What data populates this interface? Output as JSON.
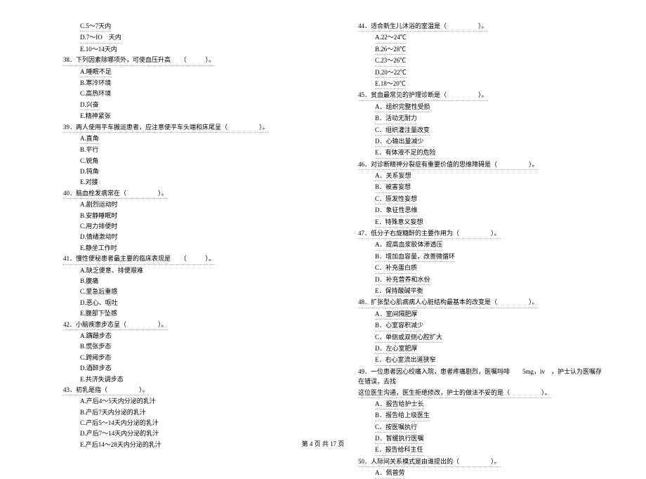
{
  "left": {
    "q37_opts_tail": [
      "C.5～7天内",
      "D.7～IO　天内",
      "E.10～14天内"
    ],
    "q38": {
      "stem": "38．下列因素除哪项外，可使血压升高　　（　　　）。",
      "opts": [
        "A.睡眠不足",
        "B.寒冷环境",
        "C.高热环境",
        "D.兴奋",
        "E.精神紧张"
      ]
    },
    "q39": {
      "stem": "39．两人使用平车搬运患者，应注意使平车头端和床尾呈（　　　　　）。",
      "opts": [
        "A.直角",
        "B.平行",
        "C.锐角",
        "D.钝角",
        "E.对接"
      ]
    },
    "q40": {
      "stem": "40．脑血栓发病常在（　　　　　）。",
      "opts": [
        "A.剧烈运动时",
        "B.安静睡眠时",
        "C.用力排便时",
        "D.情绪激动时",
        "E.静坐工作时"
      ]
    },
    "q41": {
      "stem": "41．慢性便秘患者最主要的临床表现是　　（　　　）。",
      "opts": [
        "A.缺乏便意、排便艰难",
        "B.腹痛",
        "C.里急后重感",
        "D.恶心、呕吐",
        "E.腹部下坠感"
      ]
    },
    "q42": {
      "stem": "42．小脑疾患步态呈（　　　　　）。",
      "opts": [
        "A.蹒跚步态",
        "B.慌张步态",
        "C.跨阈步态",
        "D.酒醉步态",
        "E.共济失调步态"
      ]
    },
    "q43": {
      "stem": "43．初乳是指（　　　　　）。",
      "opts": [
        "A.产后4～5天内分泌的乳汁",
        "B.产后7天内分泌的乳汁",
        "C.产后5～14天内分泌的乳汁",
        "D.产后7～14天内分泌的乳汁",
        "E.产后14～28天内分泌的乳汁"
      ]
    }
  },
  "right": {
    "q44": {
      "stem": "44．适合新生儿沐浴的室温是（　　　　　）。",
      "opts": [
        "A.22～24℃",
        "B.26～28℃",
        "C.23～26℃",
        "D.20～22℃",
        "E.18～20℃"
      ]
    },
    "q45": {
      "stem": "45．贫血最常见的护理诊断是（　　　　　）。",
      "opts": [
        "A．组织完整性受损",
        "B．活动无耐力",
        "C．组织灌注量改变",
        "D．心输出量减少",
        "E．有体液不足的危险"
      ]
    },
    "q46": {
      "stem": "46．对诊断精神分裂症有重要价值的思维障碍是（　　　　　）。",
      "opts": [
        "A．关系妄想",
        "B．被害妄想",
        "C．原发性妄想",
        "D．象征性思维",
        "E．特殊意义妄想"
      ]
    },
    "q47": {
      "stem": "47．低分子右旋糖酐的主要作用为（　　　　　）。",
      "opts": [
        "A．提高血浆胶体渗透压",
        "B．增加血容量，改善微循环",
        "C．补充蛋白质",
        "D．补充营养和水份",
        "E．保持酸碱平衡"
      ]
    },
    "q48": {
      "stem": "48．扩张型心肌病病人心脏结构最基本的改变是（　　　　　）。",
      "opts": [
        "A．室间隔肥厚",
        "B．心室容积减少",
        "C．单侧或双侧心腔扩大",
        "D．左心室肥厚",
        "E．右心室流出道狭窄"
      ]
    },
    "q49": {
      "stem_a": "49．一位患者因心绞痛入院，患者疼痛剧烈，医嘱吗啡　　5mg，iv　，护士认为医嘱存在错误，去找",
      "stem_b": "这位医生沟通，医生拒绝修改，护士的做法不妥的是（　　　　　）。",
      "opts": [
        "A．报告给护士长",
        "B．报告给上级医生",
        "C．按医嘱执行",
        "D．暂缓执行医嘱",
        "E．报告给科主任"
      ]
    },
    "q50": {
      "stem": "50．人际间关系模式是由谁提出的（　　　　　）。",
      "opts": [
        "A．佩普劳"
      ]
    }
  },
  "footer": "第 4 页 共 17 页"
}
